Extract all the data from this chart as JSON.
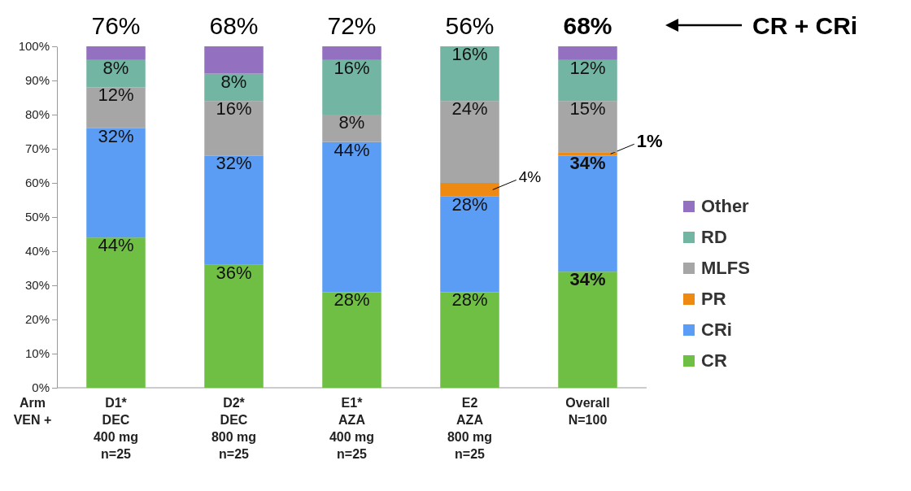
{
  "chart_data": {
    "type": "bar",
    "stacked": true,
    "categories": [
      "D1*\nDEC\n400 mg\nn=25",
      "D2*\nDEC\n800 mg\nn=25",
      "E1*\nAZA\n400 mg\nn=25",
      "E2\nAZA\n800 mg\nn=25",
      "Overall\nN=100"
    ],
    "series": [
      {
        "name": "CR",
        "color": "#70bf45",
        "values": [
          44,
          36,
          28,
          28,
          34
        ],
        "value_labels": [
          "44%",
          "36%",
          "28%",
          "28%",
          "34%"
        ]
      },
      {
        "name": "CRi",
        "color": "#5b9cf4",
        "values": [
          32,
          32,
          44,
          28,
          34
        ],
        "value_labels": [
          "32%",
          "32%",
          "44%",
          "28%",
          "34%"
        ]
      },
      {
        "name": "PR",
        "color": "#ee8a12",
        "values": [
          0,
          0,
          0,
          4,
          1
        ],
        "value_labels": [
          null,
          null,
          null,
          "4%",
          "1%"
        ]
      },
      {
        "name": "MLFS",
        "color": "#a6a6a6",
        "values": [
          12,
          16,
          8,
          24,
          15
        ],
        "value_labels": [
          "12%",
          "16%",
          "8%",
          "24%",
          "15%"
        ]
      },
      {
        "name": "RD",
        "color": "#72b5a2",
        "values": [
          8,
          8,
          16,
          16,
          12
        ],
        "value_labels": [
          "8%",
          "8%",
          "16%",
          "16%",
          "12%"
        ]
      },
      {
        "name": "Other",
        "color": "#9370c0",
        "values": [
          4,
          8,
          4,
          0,
          4
        ],
        "value_labels": [
          null,
          null,
          null,
          null,
          null
        ]
      }
    ],
    "ylim": [
      0,
      100
    ],
    "yticks": [
      {
        "value": 0,
        "label": "0%"
      },
      {
        "value": 10,
        "label": "10%"
      },
      {
        "value": 20,
        "label": "20%"
      },
      {
        "value": 30,
        "label": "30%"
      },
      {
        "value": 40,
        "label": "40%"
      },
      {
        "value": 50,
        "label": "50%"
      },
      {
        "value": 60,
        "label": "60%"
      },
      {
        "value": 70,
        "label": "70%"
      },
      {
        "value": 80,
        "label": "80%"
      },
      {
        "value": 90,
        "label": "90%"
      },
      {
        "value": 100,
        "label": "100%"
      }
    ],
    "legend": "right",
    "annotations": [
      "76%",
      "68%",
      "72%",
      "56%",
      "68%",
      "Arm",
      "VEN +",
      "CR + CRi"
    ]
  }
}
